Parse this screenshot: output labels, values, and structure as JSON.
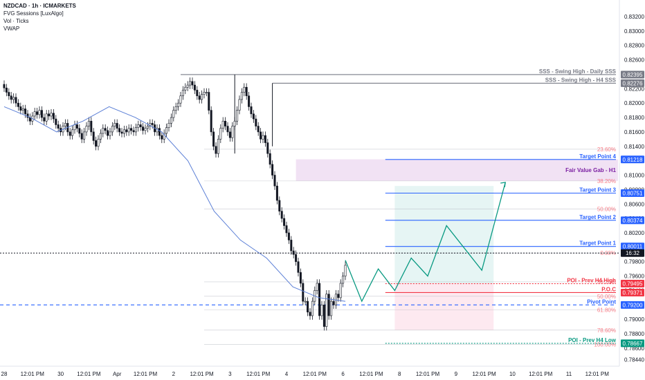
{
  "header": {
    "symbol_line": "NZDCAD · 1h · ICMARKETS",
    "indicators": [
      "FVG Sessions [LuxAlgo]",
      "Vol · Ticks",
      "VWAP"
    ]
  },
  "chart_data": {
    "type": "candlestick",
    "ylim": [
      0.7835,
      0.8343
    ],
    "y_ticks": [
      "0.78440",
      "0.78600",
      "0.78800",
      "0.79000",
      "0.79200",
      "0.79400",
      "0.79600",
      "0.79800",
      "0.80000",
      "0.80200",
      "0.80400",
      "0.80600",
      "0.80800",
      "0.81000",
      "0.81200",
      "0.81400",
      "0.81600",
      "0.81800",
      "0.82000",
      "0.82200",
      "0.82400",
      "0.82600",
      "0.82800",
      "0.83000",
      "0.83200"
    ],
    "x_ticks": [
      {
        "label": "28",
        "bar": 0
      },
      {
        "label": "12:01 PM",
        "bar": 12
      },
      {
        "label": "30",
        "bar": 24
      },
      {
        "label": "12:01 PM",
        "bar": 36
      },
      {
        "label": "Apr",
        "bar": 48
      },
      {
        "label": "12:01 PM",
        "bar": 60
      },
      {
        "label": "2",
        "bar": 72
      },
      {
        "label": "12:01 PM",
        "bar": 84
      },
      {
        "label": "3",
        "bar": 96
      },
      {
        "label": "12:01 PM",
        "bar": 108
      },
      {
        "label": "4",
        "bar": 120
      },
      {
        "label": "12:01 PM",
        "bar": 132
      },
      {
        "label": "6",
        "bar": 144
      },
      {
        "label": "12:01 PM",
        "bar": 156
      },
      {
        "label": "8",
        "bar": 168
      },
      {
        "label": "12:01 PM",
        "bar": 180
      },
      {
        "label": "9",
        "bar": 192
      },
      {
        "label": "12:01 PM",
        "bar": 204
      },
      {
        "label": "10",
        "bar": 216
      },
      {
        "label": "12:01 PM",
        "bar": 228
      },
      {
        "label": "11",
        "bar": 240
      },
      {
        "label": "12:01 PM",
        "bar": 252
      }
    ],
    "candle_closes": [
      0.8221,
      0.8215,
      0.821,
      0.8205,
      0.8208,
      0.82,
      0.8195,
      0.819,
      0.8192,
      0.8185,
      0.818,
      0.8175,
      0.8182,
      0.8188,
      0.8184,
      0.819,
      0.818,
      0.8175,
      0.8185,
      0.8182,
      0.8186,
      0.8178,
      0.817,
      0.8165,
      0.816,
      0.8168,
      0.8172,
      0.816,
      0.8155,
      0.8163,
      0.817,
      0.8165,
      0.8158,
      0.815,
      0.816,
      0.8168,
      0.8175,
      0.816,
      0.8148,
      0.814,
      0.815,
      0.8158,
      0.8165,
      0.8162,
      0.8155,
      0.816,
      0.8168,
      0.8172,
      0.8165,
      0.816,
      0.8158,
      0.8163,
      0.816,
      0.8165,
      0.8162,
      0.816,
      0.8166,
      0.817,
      0.8167,
      0.8162,
      0.8165,
      0.8168,
      0.8172,
      0.817,
      0.816,
      0.8165,
      0.8155,
      0.815,
      0.8158,
      0.8166,
      0.8172,
      0.818,
      0.819,
      0.8195,
      0.82,
      0.821,
      0.8218,
      0.8222,
      0.8225,
      0.823,
      0.8225,
      0.8218,
      0.821,
      0.8205,
      0.8212,
      0.8215,
      0.8215,
      0.819,
      0.816,
      0.814,
      0.813,
      0.815,
      0.8165,
      0.8175,
      0.8168,
      0.816,
      0.8152,
      0.8168,
      0.8175,
      0.819,
      0.8205,
      0.8215,
      0.8222,
      0.821,
      0.8195,
      0.8185,
      0.8178,
      0.8168,
      0.816,
      0.815,
      0.8155,
      0.8145,
      0.813,
      0.8115,
      0.81,
      0.8085,
      0.8065,
      0.805,
      0.804,
      0.803,
      0.802,
      0.801,
      0.7995,
      0.799,
      0.798,
      0.7965,
      0.795,
      0.7925,
      0.7925,
      0.791,
      0.7905,
      0.7925,
      0.794,
      0.795,
      0.7905,
      0.792,
      0.789,
      0.7935,
      0.7905,
      0.7925,
      0.792,
      0.7935,
      0.793,
      0.795,
      0.796,
      0.7975
    ]
  },
  "vwap": [
    0.8195,
    0.818,
    0.816,
    0.8175,
    0.8195,
    0.818,
    0.816,
    0.812,
    0.805,
    0.801,
    0.7985,
    0.7945,
    0.793,
    0.7925
  ],
  "fib_levels": [
    {
      "label": "23.60%",
      "price": 0.8136
    },
    {
      "label": "38.20%",
      "price": 0.8092
    },
    {
      "label": "50.00%",
      "price": 0.8053
    },
    {
      "label": "0.00%",
      "price": 0.7992
    },
    {
      "label": "38.20%",
      "price": 0.7952
    },
    {
      "label": "50.00%",
      "price": 0.7932
    },
    {
      "label": "61.80%",
      "price": 0.7913
    },
    {
      "label": "78.60%",
      "price": 0.7885
    },
    {
      "label": "100.00%",
      "price": 0.7865
    }
  ],
  "lines": [
    {
      "name": "sss-daily",
      "label": "SSS - Swing High - Daily SSS",
      "price": 0.82395,
      "color": "#787b86"
    },
    {
      "name": "sss-h4",
      "label": "SSS - Swing High - H4 SSS",
      "price": 0.82276,
      "color": "#787b86"
    },
    {
      "name": "target-4",
      "label": "Target Point 4",
      "price": 0.81218,
      "color": "#2962ff"
    },
    {
      "name": "target-3",
      "label": "Target Point 3",
      "price": 0.80751,
      "color": "#2962ff"
    },
    {
      "name": "target-2",
      "label": "Target Point 2",
      "price": 0.80374,
      "color": "#2962ff"
    },
    {
      "name": "target-1",
      "label": "Target Point 1",
      "price": 0.80011,
      "color": "#2962ff"
    },
    {
      "name": "poi-high",
      "label": "POI - Prev H4 High",
      "price": 0.79495,
      "color": "#f23645"
    },
    {
      "name": "poc",
      "label": "P.O.C",
      "price": 0.79371,
      "color": "#f23645"
    },
    {
      "name": "pivot",
      "label": "Pivot Point",
      "price": 0.792,
      "color": "#2962ff"
    },
    {
      "name": "poi-low",
      "label": "POI - Prev H4 Low",
      "price": 0.78667,
      "color": "#089981"
    }
  ],
  "fvg": {
    "label": "Fair Value Gab - H1",
    "top": 0.8122,
    "bottom": 0.8092
  },
  "price_badges": [
    {
      "text": "0.82395",
      "color": "#787b86",
      "price": 0.82395
    },
    {
      "text": "0.82276",
      "color": "#787b86",
      "price": 0.82276
    },
    {
      "text": "0.81218",
      "color": "#2962ff",
      "price": 0.81218
    },
    {
      "text": "0.80751",
      "color": "#2962ff",
      "price": 0.80751
    },
    {
      "text": "0.80374",
      "color": "#2962ff",
      "price": 0.80374
    },
    {
      "text": "0.80011",
      "color": "#2962ff",
      "price": 0.80011
    },
    {
      "text": "16:32",
      "color": "#131722",
      "price": 0.7992
    },
    {
      "text": "0.79495",
      "color": "#f23645",
      "price": 0.79495
    },
    {
      "text": "0.79371",
      "color": "#f23645",
      "price": 0.79371
    },
    {
      "text": "0.79200",
      "color": "#2962ff",
      "price": 0.792
    },
    {
      "text": "0.78667",
      "color": "#089981",
      "price": 0.78667
    }
  ],
  "projection_path": [
    {
      "bar": 145,
      "price": 0.7982
    },
    {
      "bar": 152,
      "price": 0.7925
    },
    {
      "bar": 159,
      "price": 0.797
    },
    {
      "bar": 166,
      "price": 0.794
    },
    {
      "bar": 173,
      "price": 0.7985
    },
    {
      "bar": 180,
      "price": 0.796
    },
    {
      "bar": 188,
      "price": 0.803
    },
    {
      "bar": 203,
      "price": 0.7968
    },
    {
      "bar": 213,
      "price": 0.809
    }
  ],
  "colors": {
    "up": "#131722",
    "down": "#131722",
    "vwap": "#5b7fd6",
    "projection": "#089981",
    "fvg_fill": "#e1bee7",
    "target_zone": "#e0f2f1",
    "stop_zone": "#fce4ec"
  }
}
